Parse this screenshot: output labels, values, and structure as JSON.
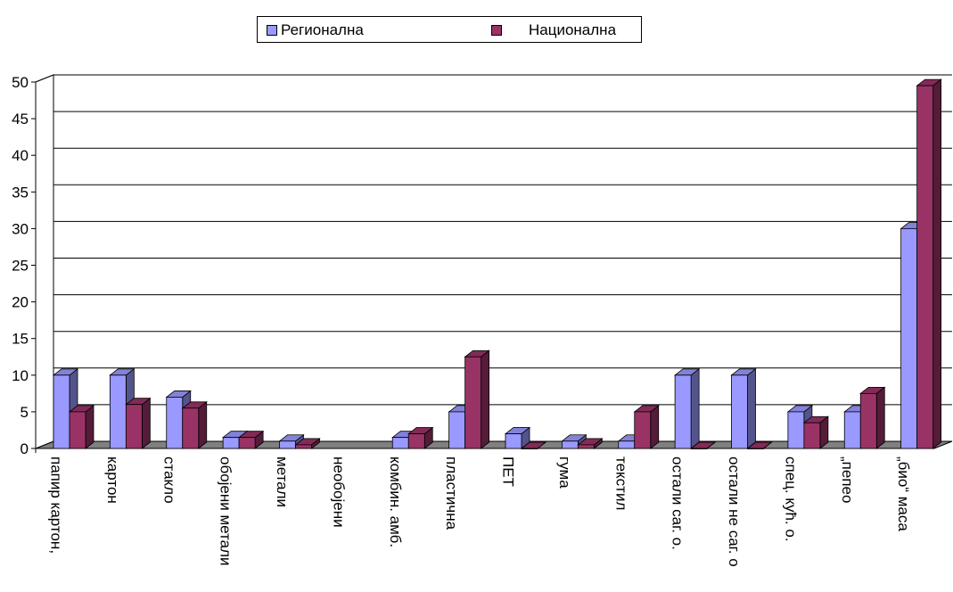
{
  "colors": {
    "series1": "#9999FF",
    "series2": "#993366",
    "floor": "#808080"
  },
  "legend": {
    "placement": "top-center",
    "items": [
      {
        "label": "Регионална",
        "color": "#9999FF"
      },
      {
        "label": "Национална",
        "color": "#993366"
      }
    ]
  },
  "chart_data": {
    "type": "bar",
    "style": "3d-clustered",
    "title": "",
    "xlabel": "",
    "ylabel": "",
    "ylim": [
      0,
      50
    ],
    "yticks": [
      0,
      5,
      10,
      15,
      20,
      25,
      30,
      35,
      40,
      45,
      50
    ],
    "grid": "horizontal",
    "categories": [
      "папир картон,",
      "картон",
      "стакло",
      "обојени метали",
      "метали",
      "необојени",
      "комбин. амб.",
      "пластична",
      "ПЕТ",
      "гума",
      "текстил",
      "остали саг. о.",
      "остали не саг. о",
      "спец. кућ. о.",
      "„пепео",
      "„био“ маса"
    ],
    "series": [
      {
        "name": "Регионална",
        "values": [
          10,
          10,
          7,
          1.5,
          1,
          null,
          1.5,
          5,
          2,
          1,
          1,
          10,
          10,
          5,
          5,
          30
        ]
      },
      {
        "name": "Национална",
        "values": [
          5,
          6,
          5.5,
          1.5,
          0.5,
          null,
          2,
          12.5,
          0,
          0.5,
          5,
          0,
          0,
          3.5,
          7.5,
          49.5
        ]
      }
    ]
  }
}
